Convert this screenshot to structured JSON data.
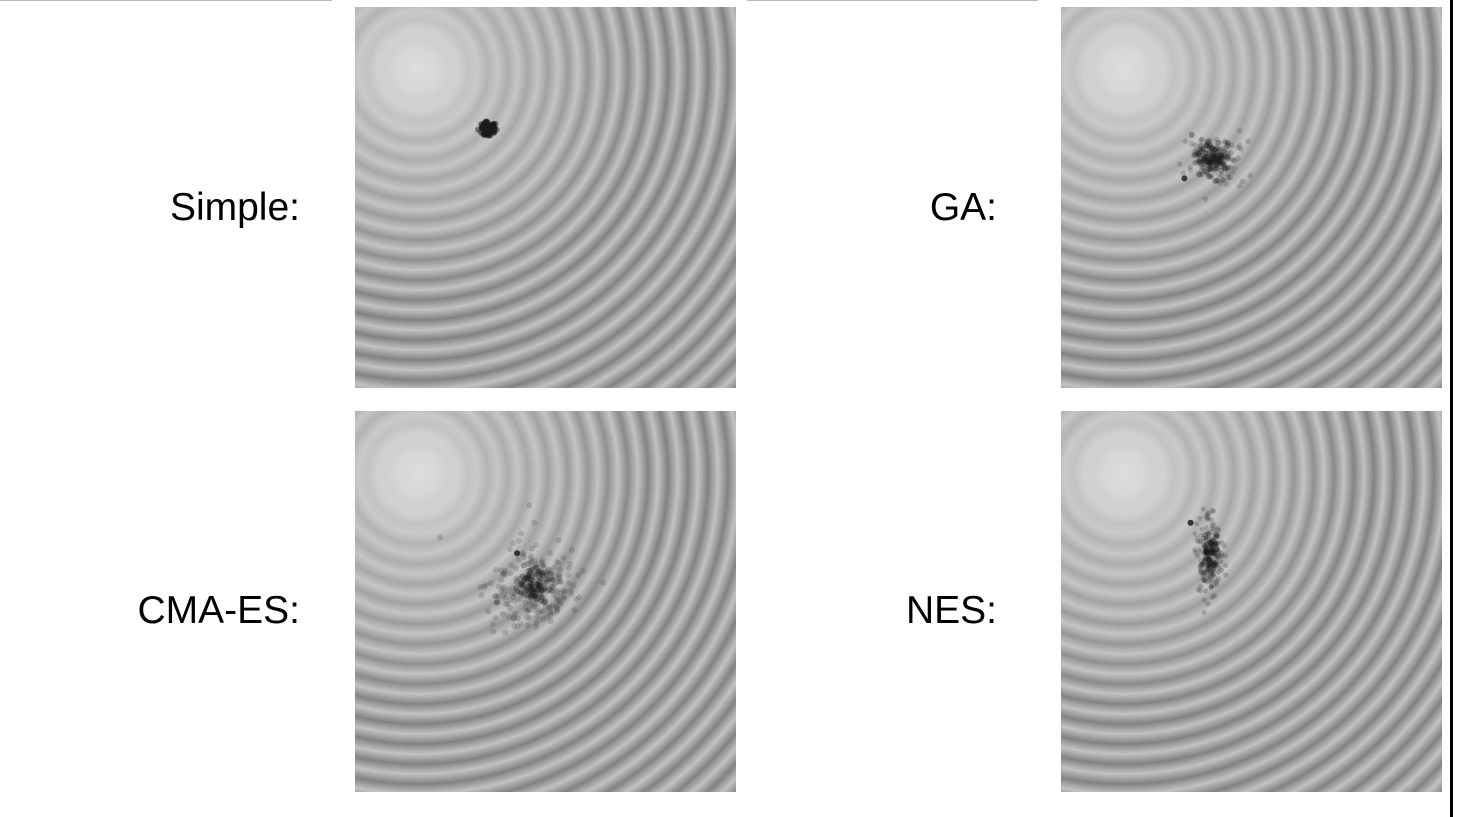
{
  "panels": [
    {
      "id": "simple",
      "label": "Simple:",
      "cluster": "tight-ring",
      "center": [
        0.35,
        0.32
      ]
    },
    {
      "id": "ga",
      "label": "GA:",
      "cluster": "blob",
      "center": [
        0.4,
        0.4
      ]
    },
    {
      "id": "cmaes",
      "label": "CMA-ES:",
      "cluster": "diffuse",
      "center": [
        0.47,
        0.46
      ]
    },
    {
      "id": "nes",
      "label": "NES:",
      "cluster": "elongated",
      "center": [
        0.39,
        0.38
      ]
    }
  ],
  "colors": {
    "ring_light": "#c4c4c4",
    "ring_dark": "#8a8a8a",
    "center_light": "#e0e0e0",
    "points": "#1a1a1a"
  }
}
